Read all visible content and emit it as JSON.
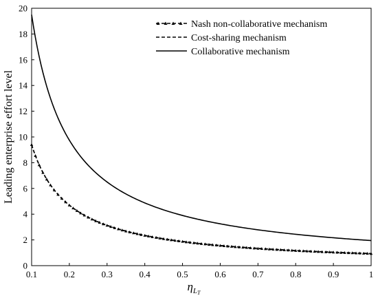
{
  "chart_data": {
    "type": "line",
    "title": "",
    "xlabel": "η_{L_T}",
    "xlabel_main": "η",
    "xlabel_sub": "L",
    "xlabel_subsub": "T",
    "ylabel": "Leading enterprise effort level",
    "xlim": [
      0.1,
      1.0
    ],
    "ylim": [
      0,
      20
    ],
    "xticks": [
      "0.1",
      "0.2",
      "0.3",
      "0.4",
      "0.5",
      "0.6",
      "0.7",
      "0.8",
      "0.9",
      "1"
    ],
    "yticks": [
      "0",
      "2",
      "4",
      "6",
      "8",
      "10",
      "12",
      "14",
      "16",
      "18",
      "20"
    ],
    "grid": false,
    "legend_position": "top-right",
    "x": [
      0.1,
      0.15,
      0.2,
      0.25,
      0.3,
      0.35,
      0.4,
      0.45,
      0.5,
      0.55,
      0.6,
      0.65,
      0.7,
      0.75,
      0.8,
      0.85,
      0.9,
      0.95,
      1.0
    ],
    "series": [
      {
        "name": "Nash non-collaborative mechanism",
        "style": "dashed-triangle",
        "color": "#000000",
        "values": [
          9.4,
          6.2,
          4.7,
          3.75,
          3.15,
          2.7,
          2.35,
          2.1,
          1.88,
          1.71,
          1.57,
          1.45,
          1.34,
          1.25,
          1.17,
          1.1,
          1.04,
          0.99,
          0.94
        ]
      },
      {
        "name": "Cost-sharing mechanism",
        "style": "dashed",
        "color": "#000000",
        "values": [
          9.4,
          6.2,
          4.7,
          3.75,
          3.15,
          2.7,
          2.35,
          2.1,
          1.88,
          1.71,
          1.57,
          1.45,
          1.34,
          1.25,
          1.17,
          1.1,
          1.04,
          0.99,
          0.94
        ]
      },
      {
        "name": "Collaborative mechanism",
        "style": "solid",
        "color": "#000000",
        "values": [
          19.5,
          13.0,
          9.75,
          7.8,
          6.5,
          5.57,
          4.88,
          4.33,
          3.9,
          3.55,
          3.25,
          3.0,
          2.79,
          2.6,
          2.44,
          2.29,
          2.17,
          2.05,
          1.95
        ]
      }
    ]
  }
}
